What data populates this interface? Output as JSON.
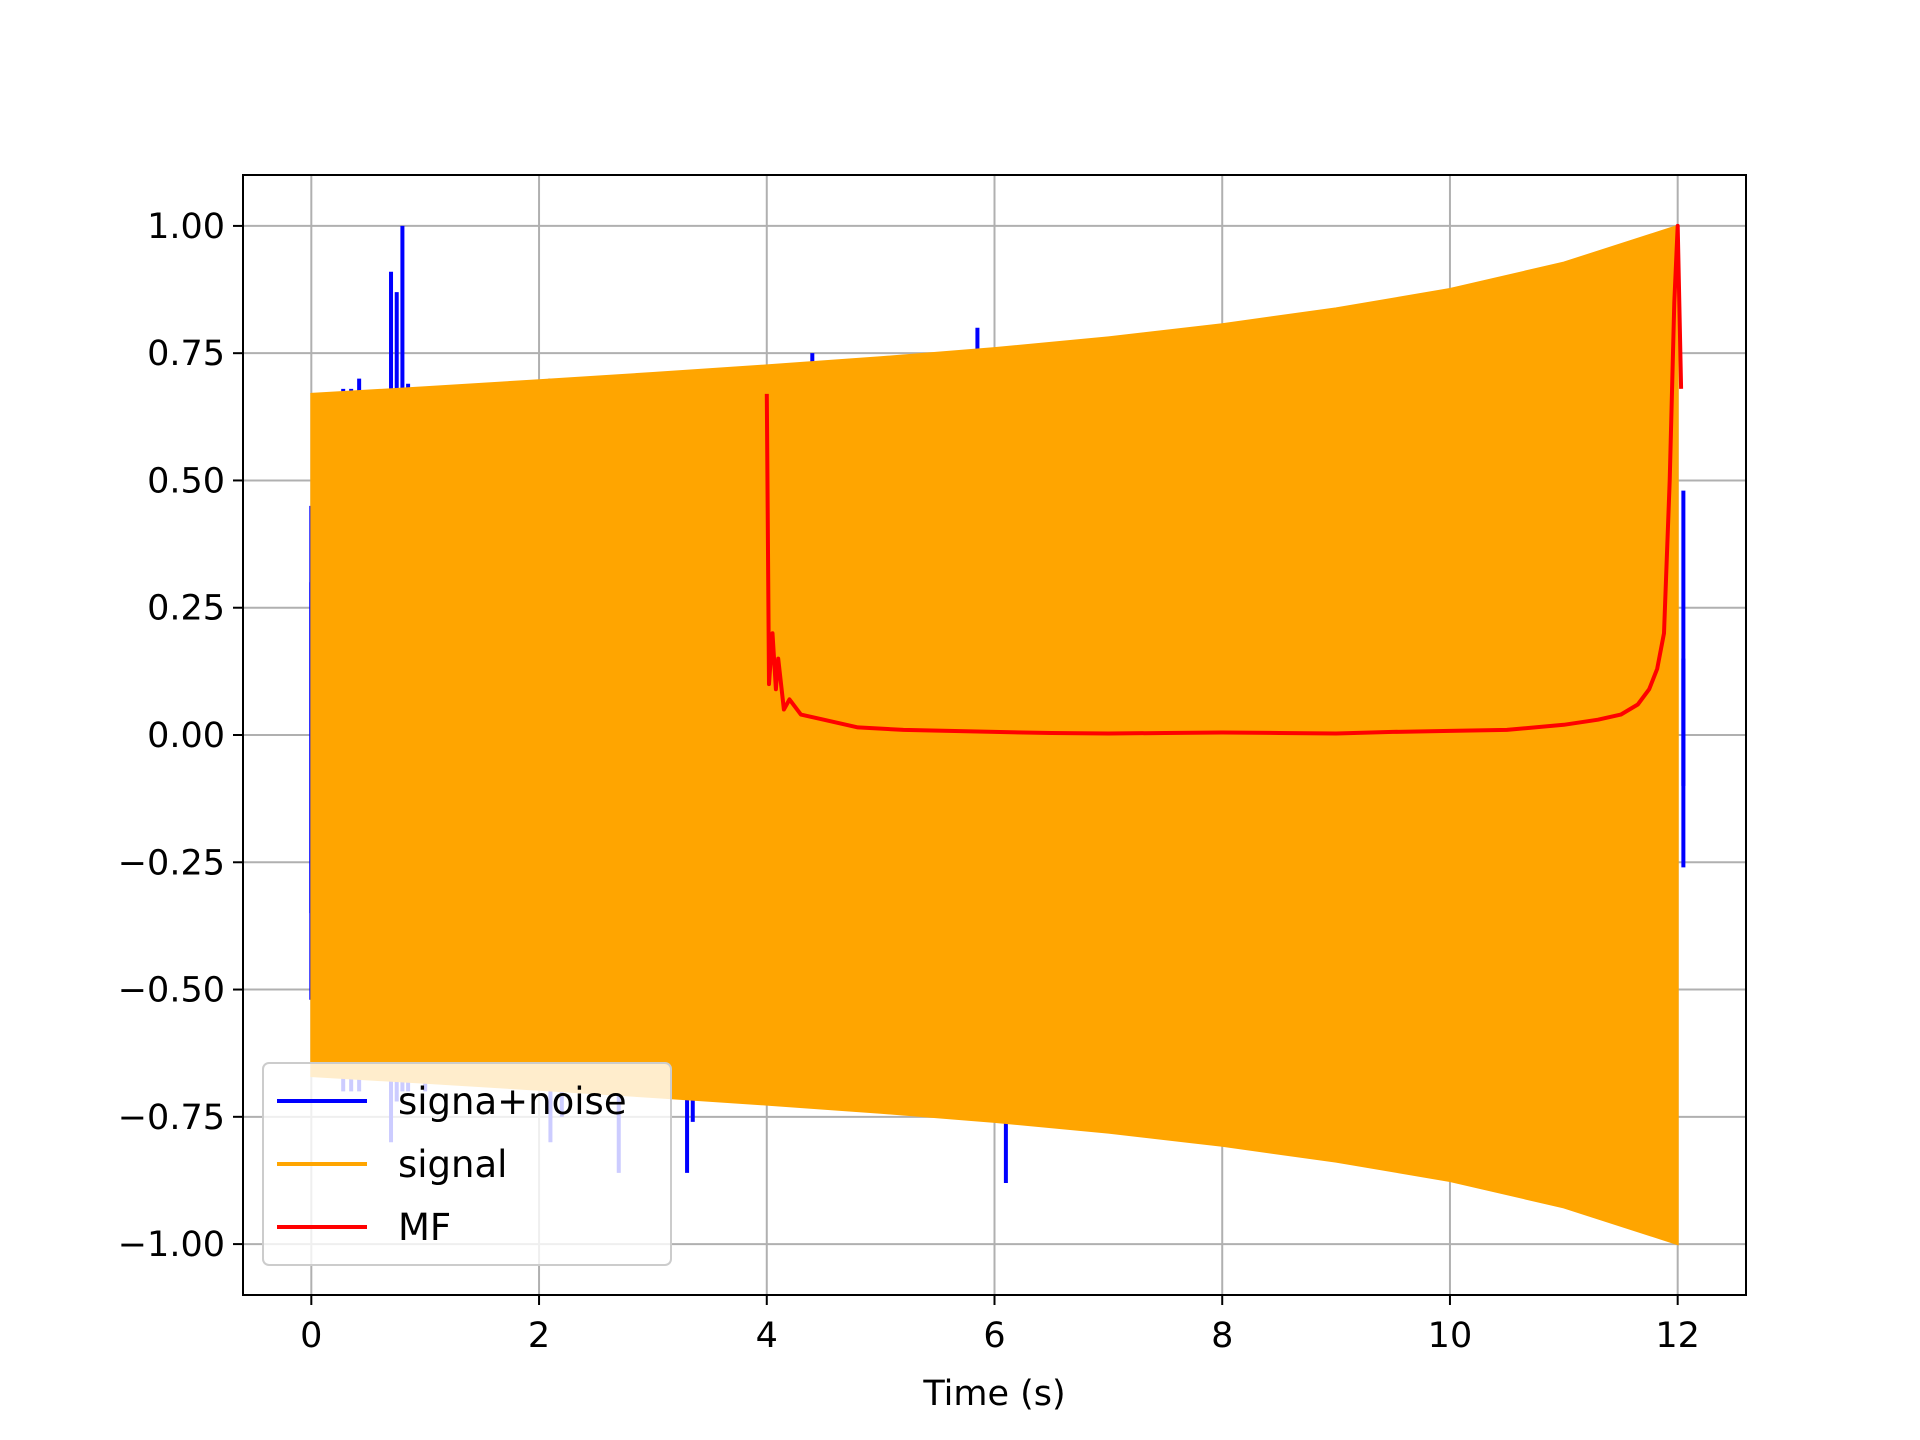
{
  "chart_data": {
    "type": "line",
    "title": "",
    "xlabel": "Time (s)",
    "ylabel": "",
    "xlim": [
      -0.6,
      12.6
    ],
    "ylim": [
      -1.1,
      1.1
    ],
    "grid": true,
    "legend_position": "lower-left",
    "x_ticks": [
      0,
      2,
      4,
      6,
      8,
      10,
      12
    ],
    "x_tick_labels": [
      "0",
      "2",
      "4",
      "6",
      "8",
      "10",
      "12"
    ],
    "y_ticks": [
      1.0,
      0.75,
      0.5,
      0.25,
      0.0,
      -0.25,
      -0.5,
      -0.75,
      -1.0
    ],
    "y_tick_labels": [
      "1.00",
      "0.75",
      "0.50",
      "0.25",
      "0.00",
      "−0.25",
      "−0.50",
      "−0.75",
      "−1.00"
    ],
    "series": [
      {
        "name": "signa+noise",
        "color": "#0000ff",
        "style": "spikes",
        "x": [
          0.0,
          0.0,
          0.28,
          0.35,
          0.42,
          0.45,
          0.7,
          0.75,
          0.8,
          0.85,
          1.0,
          2.1,
          2.2,
          2.7,
          3.3,
          3.35,
          3.85,
          4.4,
          5.85,
          6.1,
          7.0,
          12.05,
          12.05
        ],
        "upper": [
          0.45,
          0.3,
          0.68,
          0.68,
          0.7,
          0.45,
          0.91,
          0.87,
          1.0,
          0.69,
          0.65,
          0.7,
          0.65,
          0.64,
          0.67,
          0.7,
          0.72,
          0.75,
          0.8,
          0.71,
          0.78,
          0.48,
          0.15
        ],
        "lower": [
          -0.52,
          -0.35,
          -0.7,
          -0.7,
          -0.7,
          -0.6,
          -0.8,
          -0.72,
          -0.7,
          -0.7,
          -0.7,
          -0.8,
          -0.75,
          -0.86,
          -0.86,
          -0.76,
          -0.72,
          -0.7,
          -0.72,
          -0.88,
          -0.78,
          -0.26,
          -0.1
        ]
      },
      {
        "name": "signal",
        "color": "#ffa500",
        "style": "envelope",
        "x": [
          0,
          1,
          2,
          3,
          4,
          5,
          6,
          7,
          8,
          9,
          10,
          11,
          12
        ],
        "upper": [
          0.67,
          0.683,
          0.697,
          0.711,
          0.726,
          0.742,
          0.76,
          0.781,
          0.807,
          0.838,
          0.876,
          0.928,
          1.0
        ],
        "lower": [
          -0.67,
          -0.683,
          -0.697,
          -0.711,
          -0.726,
          -0.742,
          -0.76,
          -0.781,
          -0.807,
          -0.838,
          -0.876,
          -0.928,
          -1.0
        ]
      },
      {
        "name": "MF",
        "color": "#ff0000",
        "style": "line",
        "x": [
          4.0,
          4.02,
          4.05,
          4.08,
          4.1,
          4.15,
          4.2,
          4.3,
          4.5,
          4.8,
          5.2,
          5.6,
          6.0,
          6.5,
          7.0,
          7.5,
          8.0,
          8.5,
          9.0,
          9.5,
          10.0,
          10.5,
          11.0,
          11.3,
          11.5,
          11.65,
          11.75,
          11.82,
          11.88,
          11.93,
          11.97,
          12.0,
          12.03
        ],
        "y": [
          0.67,
          0.1,
          0.2,
          0.09,
          0.15,
          0.05,
          0.07,
          0.04,
          0.03,
          0.015,
          0.01,
          0.008,
          0.006,
          0.004,
          0.003,
          0.004,
          0.005,
          0.004,
          0.003,
          0.006,
          0.008,
          0.01,
          0.02,
          0.03,
          0.04,
          0.06,
          0.09,
          0.13,
          0.2,
          0.5,
          0.85,
          1.0,
          0.68
        ]
      }
    ]
  }
}
